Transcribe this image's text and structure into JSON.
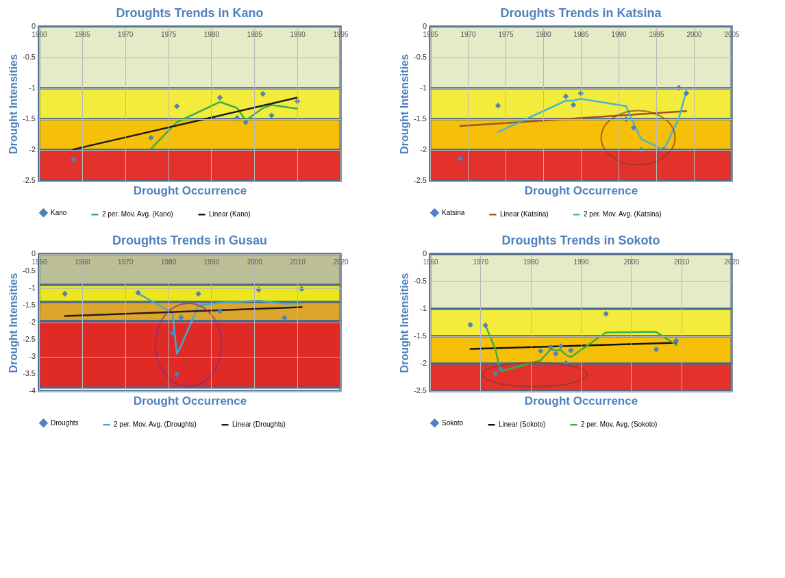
{
  "chart_data": [
    {
      "type": "scatter",
      "title": "Droughts Trends in Kano",
      "xlabel": "Drought Occurrence",
      "ylabel": "Drought Intensities",
      "xlim": [
        1960,
        1995
      ],
      "xticks": [
        1960,
        1965,
        1970,
        1975,
        1980,
        1985,
        1990,
        1995
      ],
      "ylim": [
        -2.5,
        0
      ],
      "yticks": [
        -2.5,
        -2,
        -1.5,
        -1,
        -0.5,
        0
      ],
      "grid": true,
      "legend": "bottom",
      "bands": [
        {
          "axis": "y",
          "from": 0,
          "to": -1,
          "color": "#e4ebc6"
        },
        {
          "axis": "y",
          "from": -1,
          "to": -1.5,
          "color": "#f3ec3c"
        },
        {
          "axis": "y",
          "from": -1.5,
          "to": -2,
          "color": "#f6bf08"
        },
        {
          "axis": "y",
          "from": -2,
          "to": -2.5,
          "color": "#e2322b"
        }
      ],
      "series": [
        {
          "name": "Kano",
          "marker": "diamond",
          "color": "#4f81bd",
          "x": [
            1964,
            1973,
            1976,
            1981,
            1983,
            1984,
            1986,
            1987,
            1990
          ],
          "values": [
            -2.15,
            -1.8,
            -1.29,
            -1.15,
            -1.48,
            -1.55,
            -1.09,
            -1.44,
            -1.21
          ]
        },
        {
          "name": "2 per. Mov. Avg. (Kano)",
          "type": "line",
          "color": "#3cae49",
          "x": [
            1973,
            1976,
            1981,
            1983,
            1984,
            1986,
            1987,
            1990
          ],
          "values": [
            -1.98,
            -1.55,
            -1.22,
            -1.32,
            -1.52,
            -1.32,
            -1.27,
            -1.33
          ]
        },
        {
          "name": "Linear (Kano)",
          "type": "line",
          "color": "#1a1a1a",
          "x": [
            1964,
            1990
          ],
          "values": [
            -1.99,
            -1.15
          ]
        }
      ]
    },
    {
      "type": "scatter",
      "title": "Droughts Trends in Katsina",
      "xlabel": "Drought Occurrence",
      "ylabel": "Drought Intensities",
      "xlim": [
        1965,
        2005
      ],
      "xticks": [
        1965,
        1970,
        1975,
        1980,
        1985,
        1990,
        1995,
        2000,
        2005
      ],
      "ylim": [
        -2.5,
        0
      ],
      "yticks": [
        -2.5,
        -2,
        -1.5,
        -1,
        -0.5,
        0
      ],
      "grid": true,
      "legend": "bottom",
      "bands": [
        {
          "axis": "y",
          "from": 0,
          "to": -1,
          "color": "#e4ebc6"
        },
        {
          "axis": "y",
          "from": -1,
          "to": -1.5,
          "color": "#f3ec3c"
        },
        {
          "axis": "y",
          "from": -1.5,
          "to": -2,
          "color": "#f6bf08"
        },
        {
          "axis": "y",
          "from": -2,
          "to": -2.5,
          "color": "#e2322b"
        }
      ],
      "series": [
        {
          "name": "Katsina",
          "marker": "diamond",
          "color": "#4f81bd",
          "x": [
            1969,
            1974,
            1983,
            1984,
            1985,
            1991,
            1992,
            1993,
            1996,
            1998,
            1999
          ],
          "values": [
            -2.14,
            -1.28,
            -1.13,
            -1.27,
            -1.08,
            -1.5,
            -1.64,
            -2,
            -1.99,
            -0.99,
            -1.08
          ]
        },
        {
          "name": "Linear (Katsina)",
          "type": "line",
          "color": "#a0522d",
          "x": [
            1969,
            1999
          ],
          "values": [
            -1.61,
            -1.37
          ]
        },
        {
          "name": "2 per. Mov. Avg. (Katsina)",
          "type": "line",
          "color": "#46b5cf",
          "x": [
            1974,
            1983,
            1984,
            1985,
            1991,
            1992,
            1993,
            1996,
            1998,
            1999
          ],
          "values": [
            -1.71,
            -1.2,
            -1.2,
            -1.17,
            -1.29,
            -1.57,
            -1.82,
            -2,
            -1.49,
            -1.04
          ]
        }
      ]
    },
    {
      "type": "scatter",
      "title": "Droughts Trends in Gusau",
      "xlabel": "Drought Occurrence",
      "ylabel": "Drought Intensities",
      "xlim": [
        1950,
        2020
      ],
      "xticks": [
        1950,
        1960,
        1970,
        1980,
        1990,
        2000,
        2010,
        2020
      ],
      "ylim": [
        -4,
        0
      ],
      "yticks": [
        -4,
        -3.5,
        -3,
        -2.5,
        -2,
        -1.5,
        -1,
        -0.5,
        0
      ],
      "grid": true,
      "legend": "bottom",
      "bands": [
        {
          "axis": "y",
          "from": 0,
          "to": -0.9,
          "color": "#bcbf95"
        },
        {
          "axis": "y",
          "from": -0.9,
          "to": -1.4,
          "color": "#ece61c"
        },
        {
          "axis": "y",
          "from": -1.4,
          "to": -1.95,
          "color": "#dca52c"
        },
        {
          "axis": "y",
          "from": -1.95,
          "to": -3.9,
          "color": "#e02a25"
        }
      ],
      "series": [
        {
          "name": "Droughts",
          "marker": "diamond",
          "color": "#4f81bd",
          "x": [
            1956,
            1973,
            1981,
            1982,
            1983,
            1987,
            1992,
            2001,
            2007,
            2011
          ],
          "values": [
            -1.16,
            -1.13,
            -2.31,
            -3.51,
            -1.85,
            -1.16,
            -1.67,
            -1.04,
            -1.86,
            -1.02
          ]
        },
        {
          "name": "2 per. Mov. Avg. (Droughts)",
          "type": "line",
          "color": "#3fa9d6",
          "x": [
            1973,
            1981,
            1982,
            1983,
            1987,
            1992,
            2001,
            2007,
            2011
          ],
          "values": [
            -1.15,
            -1.72,
            -2.91,
            -2.68,
            -1.51,
            -1.42,
            -1.36,
            -1.45,
            -1.44
          ]
        },
        {
          "name": "Linear (Droughts)",
          "type": "line",
          "color": "#2a1a1a",
          "x": [
            1956,
            2011
          ],
          "values": [
            -1.81,
            -1.55
          ]
        }
      ]
    },
    {
      "type": "scatter",
      "title": "Droughts Trends in Sokoto",
      "xlabel": "Drought Occurrence",
      "ylabel": "Drought Intensities",
      "xlim": [
        1960,
        2020
      ],
      "xticks": [
        1960,
        1970,
        1980,
        1990,
        2000,
        2010,
        2020
      ],
      "ylim": [
        -2.5,
        0
      ],
      "yticks": [
        -2.5,
        -2,
        -1.5,
        -1,
        -0.5,
        0
      ],
      "grid": true,
      "legend": "bottom",
      "bands": [
        {
          "axis": "y",
          "from": 0,
          "to": -1,
          "color": "#e4ebc6"
        },
        {
          "axis": "y",
          "from": -1,
          "to": -1.5,
          "color": "#f3ec3c"
        },
        {
          "axis": "y",
          "from": -1.5,
          "to": -2,
          "color": "#f6bf08"
        },
        {
          "axis": "y",
          "from": -2,
          "to": -2.5,
          "color": "#e2322b"
        }
      ],
      "series": [
        {
          "name": "Sokoto",
          "marker": "diamond",
          "color": "#4f81bd",
          "x": [
            1968,
            1971,
            1973,
            1974,
            1982,
            1984,
            1985,
            1986,
            1987,
            1988,
            1995,
            2005,
            2009
          ],
          "values": [
            -1.29,
            -1.3,
            -2.18,
            -2.1,
            -1.77,
            -1.7,
            -1.82,
            -1.68,
            -1.99,
            -1.76,
            -1.09,
            -1.74,
            -1.58
          ]
        },
        {
          "name": "Linear (Sokoto)",
          "type": "line",
          "color": "#111111",
          "x": [
            1968,
            2009
          ],
          "values": [
            -1.73,
            -1.62
          ]
        },
        {
          "name": "2 per. Mov. Avg. (Sokoto)",
          "type": "line",
          "color": "#3cae49",
          "x": [
            1971,
            1973,
            1974,
            1982,
            1984,
            1985,
            1986,
            1987,
            1988,
            1995,
            2005,
            2009
          ],
          "values": [
            -1.3,
            -1.74,
            -2.14,
            -1.94,
            -1.74,
            -1.76,
            -1.75,
            -1.84,
            -1.88,
            -1.43,
            -1.42,
            -1.66
          ]
        }
      ]
    }
  ]
}
